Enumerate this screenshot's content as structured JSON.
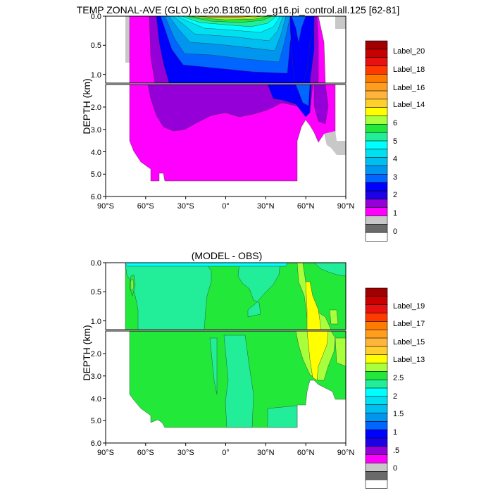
{
  "chart_data": [
    {
      "type": "heatmap",
      "title": "TEMP ZONAL-AVE (GLO) b.e20.B1850.f09_g16.pi_control.all.125 [62-81]",
      "xlabel": "",
      "ylabel": "DEPTH (km)",
      "xlim": [
        -90,
        90
      ],
      "x_ticks": [
        -90,
        -60,
        -30,
        0,
        30,
        60,
        90
      ],
      "x_tick_labels": [
        "90°S",
        "60°S",
        "30°S",
        "0°",
        "30°N",
        "60°N",
        "90°N"
      ],
      "upper_ylim": [
        0.0,
        1.15
      ],
      "upper_y_tick_labels": [
        "0.0",
        "0.5",
        "1.0"
      ],
      "lower_ylim": [
        1.15,
        6.0
      ],
      "lower_y_tick_labels": [
        "2.0",
        "3.0",
        "4.0",
        "5.0",
        "6.0"
      ],
      "colorbar": {
        "levels": 20,
        "labels": [
          "Label_20",
          "Label_18",
          "Label_16",
          "Label_14",
          "6",
          "5",
          "4",
          "3",
          "2",
          "1",
          "0"
        ],
        "colors": [
          "#a00000",
          "#c80000",
          "#e81010",
          "#ff3a00",
          "#ff7a00",
          "#ff9e1e",
          "#ffb43c",
          "#ffd02c",
          "#ffff00",
          "#a8ff3c",
          "#22e83a",
          "#22ee99",
          "#00ffff",
          "#00e0f0",
          "#00bff0",
          "#0096f0",
          "#0066ff",
          "#0000ff",
          "#1c00e6",
          "#9600d8",
          "#ff00ff",
          "#c8c8c8",
          "#6a6a6a",
          "#ffffff"
        ]
      }
    },
    {
      "type": "heatmap",
      "title": "(MODEL - OBS)",
      "xlabel": "",
      "ylabel": "DEPTH (km)",
      "xlim": [
        -90,
        90
      ],
      "x_ticks": [
        -90,
        -60,
        -30,
        0,
        30,
        60,
        90
      ],
      "x_tick_labels": [
        "90°S",
        "60°S",
        "30°S",
        "0°",
        "30°N",
        "60°N",
        "90°N"
      ],
      "upper_ylim": [
        0.0,
        1.15
      ],
      "upper_y_tick_labels": [
        "0.0",
        "0.5",
        "1.0"
      ],
      "lower_ylim": [
        1.15,
        6.0
      ],
      "lower_y_tick_labels": [
        "2.0",
        "3.0",
        "4.0",
        "5.0",
        "6.0"
      ],
      "colorbar": {
        "levels": 20,
        "labels": [
          "Label_19",
          "Label_17",
          "Label_15",
          "Label_13",
          "2.5",
          "2",
          "1.5",
          "1",
          ".5",
          "0"
        ],
        "colors": [
          "#a00000",
          "#c80000",
          "#e81010",
          "#ff3a00",
          "#ff7a00",
          "#ff9e1e",
          "#ffb43c",
          "#ffd02c",
          "#ffff00",
          "#a8ff3c",
          "#22e83a",
          "#22ee99",
          "#00ffff",
          "#00e0f0",
          "#00bff0",
          "#0096f0",
          "#0066ff",
          "#0000ff",
          "#1c00e6",
          "#9600d8",
          "#ff00ff",
          "#c8c8c8",
          "#6a6a6a",
          "#ffffff"
        ]
      }
    }
  ]
}
